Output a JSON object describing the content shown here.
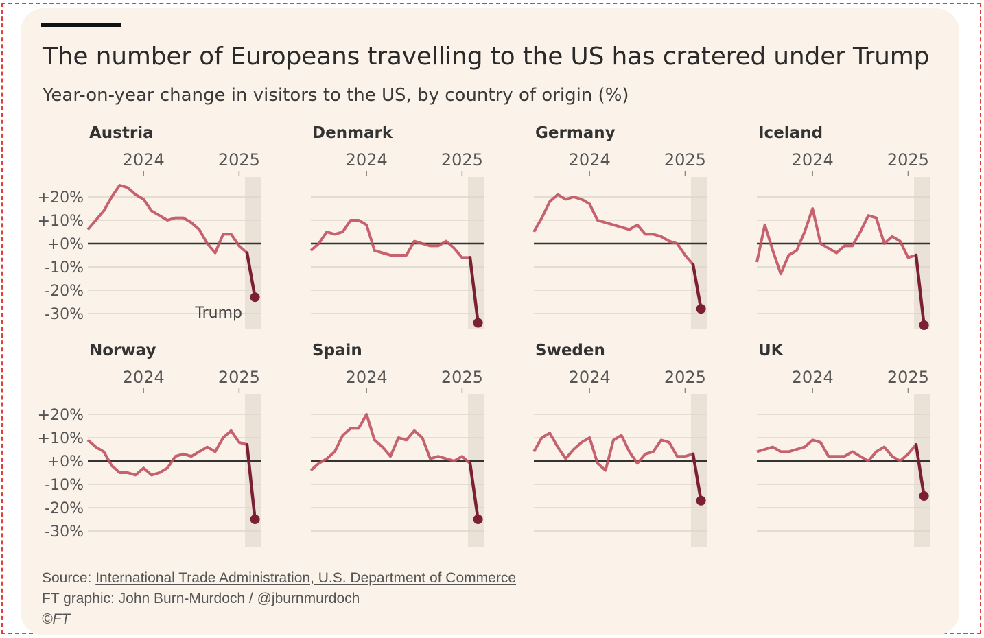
{
  "header": {
    "title": "The number of Europeans travelling to the US has cratered under Trump",
    "subtitle": "Year-on-year change in visitors to the US, by country of origin (%)"
  },
  "footer": {
    "source_label": "Source: ",
    "source_link": "International Trade Administration, U.S. Department of Commerce",
    "credit": "FT graphic: John Burn-Murdoch / @jburnmurdoch",
    "copyright": "©FT"
  },
  "colors": {
    "background": "#fbf3ea",
    "line": "#c0525f",
    "post_trump_line": "#7a1f35",
    "shade": "#e6ddd3",
    "zero_line": "#333333",
    "grid": "#ddd6cc"
  },
  "chart_data": {
    "type": "line",
    "layout": "small multiples, 4 columns x 2 rows",
    "x": [
      "2023-06",
      "2023-07",
      "2023-08",
      "2023-09",
      "2023-10",
      "2023-11",
      "2023-12",
      "2024-01",
      "2024-02",
      "2024-03",
      "2024-04",
      "2024-05",
      "2024-06",
      "2024-07",
      "2024-08",
      "2024-09",
      "2024-10",
      "2024-11",
      "2024-12",
      "2025-01",
      "2025-02",
      "2025-03"
    ],
    "x_tick_labels": [
      "2024",
      "2025"
    ],
    "x_ticks": [
      "2024-01",
      "2025-01"
    ],
    "y_tick_labels": [
      "+20%",
      "+10%",
      "+0%",
      "-10%",
      "-20%",
      "-30%"
    ],
    "y_ticks": [
      20,
      10,
      0,
      -10,
      -20,
      -30
    ],
    "ylim": [
      -35,
      27
    ],
    "grid": true,
    "shaded_period": [
      "2025-02",
      "2025-03"
    ],
    "annotation": {
      "panel": "Austria",
      "text": "Trump"
    },
    "series": [
      {
        "name": "Austria",
        "values": [
          6,
          10,
          14,
          20,
          25,
          24,
          21,
          19,
          14,
          12,
          10,
          11,
          11,
          9,
          6,
          0,
          -4,
          4,
          4,
          -1,
          -4,
          -23
        ]
      },
      {
        "name": "Denmark",
        "values": [
          -3,
          0,
          5,
          4,
          5,
          10,
          10,
          8,
          -3,
          -4,
          -5,
          -5,
          -5,
          1,
          0,
          -1,
          -1,
          1,
          -2,
          -6,
          -6,
          -34
        ]
      },
      {
        "name": "Germany",
        "values": [
          5,
          11,
          18,
          21,
          19,
          20,
          19,
          17,
          10,
          9,
          8,
          7,
          6,
          8,
          4,
          4,
          3,
          1,
          0,
          -5,
          -9,
          -28
        ]
      },
      {
        "name": "Iceland",
        "values": [
          -8,
          8,
          -3,
          -13,
          -5,
          -3,
          5,
          15,
          0,
          -2,
          -4,
          -1,
          -1,
          5,
          12,
          11,
          0,
          3,
          1,
          -6,
          -5,
          -35
        ]
      },
      {
        "name": "Norway",
        "values": [
          9,
          6,
          4,
          -2,
          -5,
          -5,
          -6,
          -3,
          -6,
          -5,
          -3,
          2,
          3,
          2,
          4,
          6,
          4,
          10,
          13,
          8,
          7,
          -25
        ]
      },
      {
        "name": "Spain",
        "values": [
          -4,
          -1,
          1,
          4,
          11,
          14,
          14,
          20,
          9,
          6,
          2,
          10,
          9,
          13,
          10,
          1,
          2,
          1,
          0,
          2,
          -1,
          -25
        ]
      },
      {
        "name": "Sweden",
        "values": [
          4,
          10,
          12,
          6,
          1,
          5,
          8,
          10,
          -1,
          -4,
          9,
          11,
          4,
          -1,
          3,
          4,
          9,
          8,
          2,
          2,
          3,
          -17
        ]
      },
      {
        "name": "UK",
        "values": [
          4,
          5,
          6,
          4,
          4,
          5,
          6,
          9,
          8,
          2,
          2,
          2,
          4,
          2,
          0,
          4,
          6,
          2,
          0,
          3,
          7,
          -15
        ]
      }
    ]
  }
}
